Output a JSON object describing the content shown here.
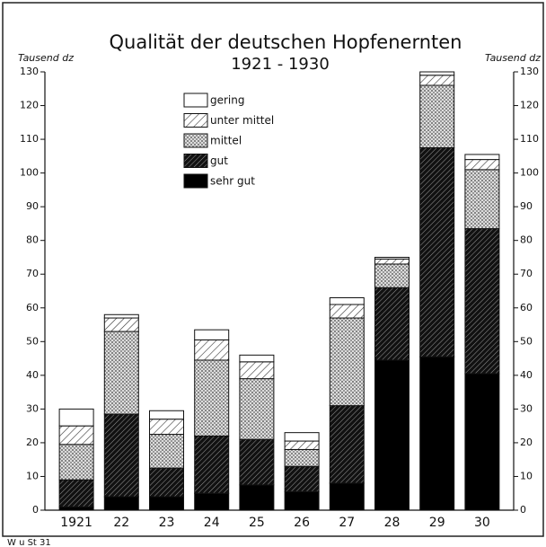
{
  "chart_data": {
    "type": "stacked-bar",
    "title": "Qualität der deutschen Hopfenernten",
    "subtitle": "1921 - 1930",
    "y_label": "Tausend dz",
    "y2_label": "Tausend dz",
    "footnote": "W u St 31",
    "categories": [
      "1921",
      "22",
      "23",
      "24",
      "25",
      "26",
      "27",
      "28",
      "29",
      "30"
    ],
    "series": [
      {
        "name": "sehr gut",
        "color": "#000000",
        "pattern": "solid",
        "values": [
          1,
          4,
          4,
          5,
          7.5,
          5.5,
          8,
          44.5,
          45.5,
          40.5
        ]
      },
      {
        "name": "gut",
        "color": "#222222",
        "pattern": "dense-hatch",
        "values": [
          8,
          24.5,
          8.5,
          17,
          13.5,
          7.5,
          23,
          21.5,
          62,
          43
        ]
      },
      {
        "name": "mittel",
        "color": "#555555",
        "pattern": "crosshatch",
        "values": [
          10.5,
          24.5,
          10,
          22.5,
          18,
          5,
          26,
          7,
          18.5,
          17.5
        ]
      },
      {
        "name": "unter mittel",
        "color": "#444444",
        "pattern": "sparse-hatch",
        "values": [
          5.5,
          4,
          4.5,
          6,
          5,
          2.5,
          4,
          1.5,
          3,
          3
        ]
      },
      {
        "name": "gering",
        "color": "#ffffff",
        "pattern": "none",
        "values": [
          5,
          1,
          2.5,
          3,
          2,
          2.5,
          2,
          0.5,
          1,
          1.5
        ]
      }
    ],
    "ylim": [
      0,
      130
    ],
    "yticks": [
      0,
      10,
      20,
      30,
      40,
      50,
      60,
      70,
      80,
      90,
      100,
      110,
      120,
      130
    ],
    "y2lim": [
      0,
      130
    ],
    "y2ticks": [
      0,
      10,
      20,
      30,
      40,
      50,
      60,
      70,
      80,
      90,
      100,
      110,
      120,
      130
    ],
    "grid": false,
    "legend": "upper-left"
  }
}
